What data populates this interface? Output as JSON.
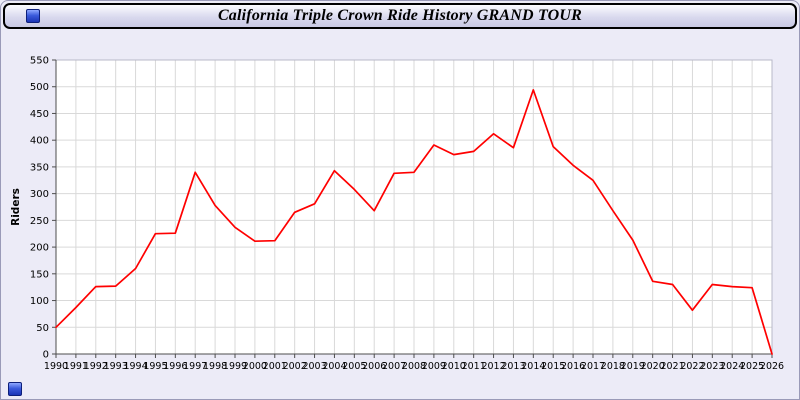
{
  "window": {
    "title": "California Triple Crown Ride History GRAND TOUR"
  },
  "icons": {
    "top_left_button": "app-button",
    "bottom_left_button": "app-button"
  },
  "colors": {
    "line": "#ff0000",
    "grid": "#d9d9d9",
    "plot_bg": "#ffffff",
    "page_bg": "#ecebf7",
    "axis": "#4d4d4d"
  },
  "chart_data": {
    "type": "line",
    "title": "California Triple Crown Ride History GRAND TOUR",
    "xlabel": "",
    "ylabel": "Riders",
    "ylim": [
      0,
      550
    ],
    "ytick_step": 50,
    "grid": true,
    "legend_position": "none",
    "x": [
      1990,
      1991,
      1992,
      1993,
      1994,
      1995,
      1996,
      1997,
      1998,
      1999,
      2000,
      2001,
      2002,
      2003,
      2004,
      2005,
      2006,
      2007,
      2008,
      2009,
      2010,
      2011,
      2012,
      2013,
      2014,
      2015,
      2016,
      2017,
      2018,
      2019,
      2020,
      2021,
      2022,
      2023,
      2024,
      2025,
      2026
    ],
    "series": [
      {
        "name": "Riders",
        "color": "#ff0000",
        "values": [
          50,
          87,
          126,
          127,
          160,
          225,
          226,
          340,
          278,
          237,
          211,
          212,
          265,
          281,
          343,
          308,
          268,
          338,
          340,
          391,
          373,
          379,
          412,
          386,
          494,
          388,
          353,
          325,
          268,
          213,
          136,
          130,
          82,
          130,
          126,
          124,
          0
        ]
      }
    ]
  }
}
